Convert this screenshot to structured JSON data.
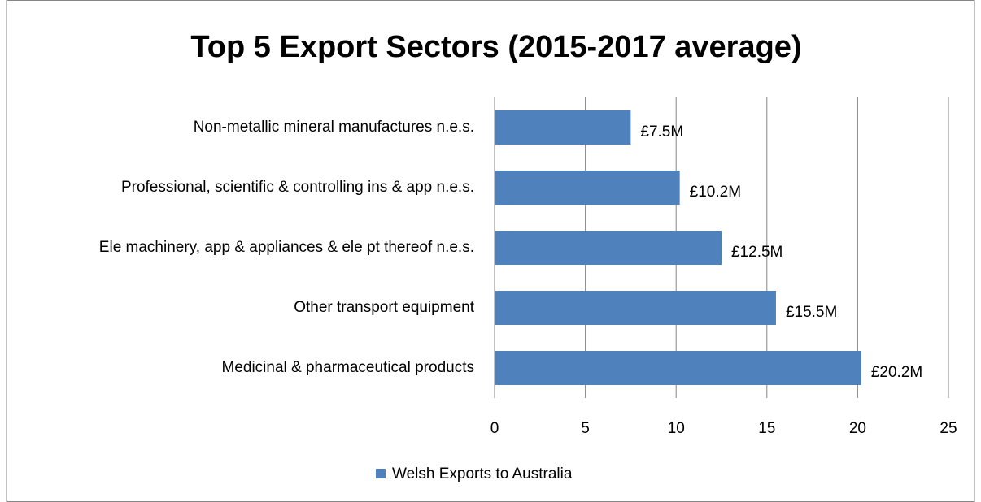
{
  "chart_data": {
    "type": "bar",
    "orientation": "horizontal",
    "title": "Top 5 Export Sectors (2015-2017 average)",
    "categories": [
      "Non-metallic mineral manufactures n.e.s.",
      "Professional, scientific & controlling ins & app n.e.s.",
      "Ele machinery, app & appliances & ele pt thereof n.e.s.",
      "Other transport equipment",
      "Medicinal & pharmaceutical products"
    ],
    "series": [
      {
        "name": "Welsh Exports to Australia",
        "color": "#4f81bd",
        "values": [
          7.5,
          10.2,
          12.5,
          15.5,
          20.2
        ],
        "value_labels": [
          "£7.5M",
          "£10.2M",
          "£12.5M",
          "£15.5M",
          "£20.2M"
        ]
      }
    ],
    "xlim": [
      0,
      25
    ],
    "xticks": [
      0,
      5,
      10,
      15,
      20,
      25
    ],
    "grid": true,
    "legend": "bottom"
  }
}
